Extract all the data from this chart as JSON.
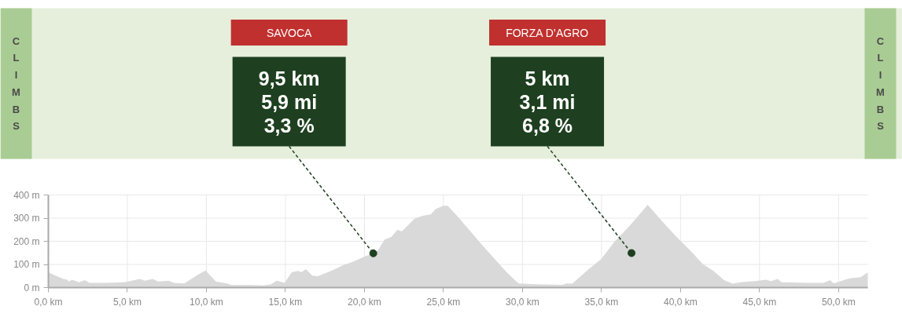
{
  "chart_data": {
    "type": "area",
    "color": "#d9d9d9",
    "x": [
      0,
      0.45,
      0.95,
      1.2,
      1.3,
      1.5,
      1.95,
      2.3,
      2.6,
      3.6,
      4.8,
      5.8,
      6.1,
      6.6,
      6.95,
      7.6,
      7.95,
      8.6,
      9.45,
      9.95,
      10.6,
      11.3,
      11.6,
      12.8,
      13.6,
      14.1,
      14.45,
      14.95,
      15.4,
      15.8,
      16.0,
      16.3,
      16.7,
      17.05,
      17.9,
      18.7,
      19.2,
      20,
      20.56,
      20.86,
      21.28,
      21.7,
      22.1,
      22.36,
      23.2,
      23.7,
      24.2,
      24.5,
      25.0,
      25.27,
      26.0,
      27.5,
      29.0,
      29.75,
      30.8,
      32.5,
      32.8,
      33.15,
      34.15,
      34.98,
      35.8,
      36.76,
      37.43,
      37.92,
      38.75,
      39.75,
      40.58,
      41.41,
      42.08,
      42.75,
      43.3,
      43.9,
      44.73,
      45.4,
      45.73,
      46.15,
      46.4,
      48.06,
      49.05,
      49.47,
      49.7,
      50.4,
      50.7,
      51.4,
      51.85
    ],
    "values": [
      66,
      52,
      37,
      34,
      26,
      34,
      23,
      32,
      20,
      20,
      23,
      37,
      30,
      37,
      26,
      30,
      20,
      18,
      55,
      74,
      26,
      18,
      11,
      11,
      9,
      14,
      30,
      20,
      66,
      72,
      66,
      80,
      52,
      49,
      72,
      98,
      109,
      134,
      148,
      162,
      208,
      219,
      250,
      242,
      299,
      310,
      316,
      339,
      353,
      353,
      299,
      180,
      66,
      18,
      14,
      12,
      18,
      17,
      77,
      123,
      197,
      265,
      318,
      358,
      293,
      219,
      163,
      102,
      72,
      32,
      17,
      24,
      28,
      34,
      28,
      37,
      23,
      20,
      20,
      32,
      18,
      34,
      40,
      45,
      66
    ],
    "xlim": [
      0,
      51.85
    ],
    "ylim": [
      0,
      400
    ],
    "xticks": [
      {
        "value": 0,
        "label": "0,0 km"
      },
      {
        "value": 5,
        "label": "5,0 km"
      },
      {
        "value": 10,
        "label": "10,0 km"
      },
      {
        "value": 15,
        "label": "15,0 km"
      },
      {
        "value": 20,
        "label": "20,0 km"
      },
      {
        "value": 25,
        "label": "25,0 km"
      },
      {
        "value": 30,
        "label": "30,0 km"
      },
      {
        "value": 35,
        "label": "35,0 km"
      },
      {
        "value": 40,
        "label": "40,0 km"
      },
      {
        "value": 45,
        "label": "45,0 km"
      },
      {
        "value": 50,
        "label": "50,0 km"
      }
    ],
    "yticks": [
      {
        "value": 0,
        "label": "0 m"
      },
      {
        "value": 100,
        "label": "100 m"
      },
      {
        "value": 200,
        "label": "200 m"
      },
      {
        "value": 300,
        "label": "300 m"
      },
      {
        "value": 400,
        "label": "400 m"
      }
    ],
    "grid": true,
    "annotations": [
      "SAVOCA",
      "9,5 km",
      "5,9 mi",
      {
        "text": "3,3 %",
        "x": 20.56,
        "y": 148
      },
      "FORZA D’AGRO",
      "5 km",
      "3,1 mi",
      {
        "text": "6,8 %",
        "x": 36.9,
        "y": 149
      },
      "CLIMBS",
      "CLIMBS"
    ]
  }
}
